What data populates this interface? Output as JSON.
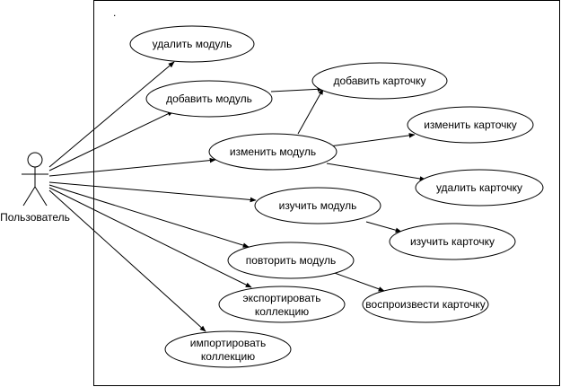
{
  "diagram": {
    "type": "use-case",
    "boundary_marker": ".",
    "actor": {
      "label": "Пользователь"
    },
    "use_cases": {
      "delete_module": [
        "удалить модуль"
      ],
      "add_module": [
        "добавить модуль"
      ],
      "add_card": [
        "добавить карточку"
      ],
      "edit_module": [
        "изменить модуль"
      ],
      "edit_card": [
        "изменить карточку"
      ],
      "delete_card": [
        "удалить карточку"
      ],
      "study_module": [
        "изучить модуль"
      ],
      "study_card": [
        "изучить карточку"
      ],
      "repeat_module": [
        "повторить модуль"
      ],
      "play_card": [
        "воспроизвести карточку"
      ],
      "export_collection": [
        "экспортировать",
        "коллекцию"
      ],
      "import_collection": [
        "импортировать",
        "коллекцию"
      ]
    },
    "associations": [
      {
        "from": "actor",
        "to": "delete_module"
      },
      {
        "from": "actor",
        "to": "add_module"
      },
      {
        "from": "actor",
        "to": "edit_module"
      },
      {
        "from": "actor",
        "to": "study_module"
      },
      {
        "from": "actor",
        "to": "repeat_module"
      },
      {
        "from": "actor",
        "to": "export_collection"
      },
      {
        "from": "actor",
        "to": "import_collection"
      },
      {
        "from": "add_module",
        "to": "add_card"
      },
      {
        "from": "edit_module",
        "to": "add_card"
      },
      {
        "from": "edit_module",
        "to": "edit_card"
      },
      {
        "from": "edit_module",
        "to": "delete_card"
      },
      {
        "from": "study_module",
        "to": "study_card"
      },
      {
        "from": "repeat_module",
        "to": "play_card"
      }
    ]
  }
}
